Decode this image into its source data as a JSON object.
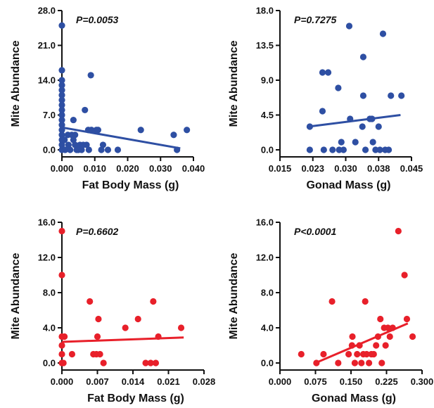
{
  "chart_data": [
    {
      "type": "scatter",
      "xlabel": "Fat Body Mass (g)",
      "ylabel": "Mite Abundance",
      "annotation": "P=0.0053",
      "xlim": [
        0,
        0.04
      ],
      "ylim": [
        0,
        28
      ],
      "xticks": [
        "0.000",
        "0.010",
        "0.020",
        "0.030",
        "0.040"
      ],
      "xtick_values": [
        0,
        0.01,
        0.02,
        0.03,
        0.04
      ],
      "yticks": [
        "0.0",
        "7.0",
        "14.0",
        "21.0",
        "28.0"
      ],
      "ytick_values": [
        0,
        7,
        14,
        21,
        28
      ],
      "color": "#2e4fa3",
      "fit_line": [
        [
          0,
          4.5
        ],
        [
          0.036,
          0.3
        ]
      ],
      "points": [
        [
          0,
          25
        ],
        [
          0,
          16
        ],
        [
          0,
          14
        ],
        [
          0,
          13
        ],
        [
          0,
          12
        ],
        [
          0,
          11
        ],
        [
          0,
          10
        ],
        [
          0,
          9
        ],
        [
          0,
          8
        ],
        [
          0,
          7
        ],
        [
          0,
          6
        ],
        [
          0,
          5
        ],
        [
          0,
          4
        ],
        [
          0,
          3
        ],
        [
          0,
          2
        ],
        [
          0,
          1
        ],
        [
          0,
          0
        ],
        [
          0.0008,
          2
        ],
        [
          0.001,
          0
        ],
        [
          0.0018,
          3
        ],
        [
          0.002,
          1
        ],
        [
          0.0025,
          0
        ],
        [
          0.003,
          3
        ],
        [
          0.0035,
          6
        ],
        [
          0.0035,
          2
        ],
        [
          0.004,
          3
        ],
        [
          0.004,
          1
        ],
        [
          0.0045,
          0
        ],
        [
          0.005,
          0
        ],
        [
          0.0055,
          1
        ],
        [
          0.006,
          0
        ],
        [
          0.0065,
          1
        ],
        [
          0.007,
          8
        ],
        [
          0.0075,
          1
        ],
        [
          0.008,
          4
        ],
        [
          0.0082,
          0
        ],
        [
          0.0088,
          15
        ],
        [
          0.009,
          4
        ],
        [
          0.0105,
          4
        ],
        [
          0.011,
          4
        ],
        [
          0.012,
          0
        ],
        [
          0.0125,
          1
        ],
        [
          0.014,
          0
        ],
        [
          0.017,
          0
        ],
        [
          0.024,
          4
        ],
        [
          0.034,
          3
        ],
        [
          0.035,
          0
        ],
        [
          0.038,
          4
        ]
      ]
    },
    {
      "type": "scatter",
      "xlabel": "Gonad Mass (g)",
      "ylabel": "Mite Abundance",
      "annotation": "P=0.7275",
      "xlim": [
        0.015,
        0.045
      ],
      "ylim": [
        0,
        18
      ],
      "xticks": [
        "0.015",
        "0.023",
        "0.030",
        "0.038",
        "0.045"
      ],
      "xtick_values": [
        0.015,
        0.0225,
        0.03,
        0.0375,
        0.045
      ],
      "yticks": [
        "0.0",
        "4.5",
        "9.0",
        "13.5",
        "18.0"
      ],
      "ytick_values": [
        0,
        4.5,
        9,
        13.5,
        18
      ],
      "color": "#2e4fa3",
      "fit_line": [
        [
          0.0215,
          3
        ],
        [
          0.0425,
          4.5
        ]
      ],
      "points": [
        [
          0.0218,
          3
        ],
        [
          0.0218,
          0
        ],
        [
          0.0247,
          5
        ],
        [
          0.0247,
          10
        ],
        [
          0.026,
          10
        ],
        [
          0.025,
          0
        ],
        [
          0.027,
          0
        ],
        [
          0.0283,
          8
        ],
        [
          0.0285,
          0
        ],
        [
          0.029,
          1
        ],
        [
          0.0295,
          0
        ],
        [
          0.0308,
          16
        ],
        [
          0.031,
          4
        ],
        [
          0.0322,
          1
        ],
        [
          0.034,
          12
        ],
        [
          0.034,
          7
        ],
        [
          0.0338,
          3
        ],
        [
          0.0345,
          0
        ],
        [
          0.0355,
          4
        ],
        [
          0.036,
          4
        ],
        [
          0.0362,
          1
        ],
        [
          0.0368,
          0
        ],
        [
          0.0375,
          3
        ],
        [
          0.0378,
          0
        ],
        [
          0.0385,
          15
        ],
        [
          0.039,
          0
        ],
        [
          0.0398,
          0
        ],
        [
          0.0403,
          7
        ],
        [
          0.0427,
          7
        ]
      ]
    },
    {
      "type": "scatter",
      "xlabel": "Fat Body Mass (g)",
      "ylabel": "Mite Abundance",
      "annotation": "P=0.6602",
      "xlim": [
        0,
        0.028
      ],
      "ylim": [
        0,
        16
      ],
      "xticks": [
        "0.000",
        "0.007",
        "0.014",
        "0.021",
        "0.028"
      ],
      "xtick_values": [
        0,
        0.007,
        0.014,
        0.021,
        0.028
      ],
      "yticks": [
        "0.0",
        "4.0",
        "8.0",
        "12.0",
        "16.0"
      ],
      "ytick_values": [
        0,
        4,
        8,
        12,
        16
      ],
      "color": "#e8202a",
      "fit_line": [
        [
          0,
          2.4
        ],
        [
          0.024,
          2.9
        ]
      ],
      "points": [
        [
          0,
          15
        ],
        [
          0,
          10
        ],
        [
          0,
          3
        ],
        [
          0,
          2
        ],
        [
          0,
          1
        ],
        [
          0,
          0
        ],
        [
          0.0003,
          0
        ],
        [
          0.0005,
          3
        ],
        [
          0.002,
          1
        ],
        [
          0.0055,
          7
        ],
        [
          0.0062,
          1
        ],
        [
          0.0068,
          1
        ],
        [
          0.007,
          3
        ],
        [
          0.0072,
          5
        ],
        [
          0.0075,
          1
        ],
        [
          0.0082,
          0
        ],
        [
          0.0125,
          4
        ],
        [
          0.015,
          5
        ],
        [
          0.0165,
          0
        ],
        [
          0.0175,
          0
        ],
        [
          0.018,
          7
        ],
        [
          0.0185,
          0
        ],
        [
          0.019,
          3
        ],
        [
          0.0235,
          4
        ]
      ]
    },
    {
      "type": "scatter",
      "xlabel": "Gonad Mass (g)",
      "ylabel": "Mite Abundance",
      "annotation": "P<0.0001",
      "xlim": [
        0,
        0.3
      ],
      "ylim": [
        0,
        16
      ],
      "xticks": [
        "0.000",
        "0.075",
        "0.150",
        "0.225",
        "0.300"
      ],
      "xtick_values": [
        0,
        0.075,
        0.15,
        0.225,
        0.3
      ],
      "yticks": [
        "0.0",
        "4.0",
        "8.0",
        "12.0",
        "16.0"
      ],
      "ytick_values": [
        0,
        4,
        8,
        12,
        16
      ],
      "color": "#e8202a",
      "fit_line": [
        [
          0.075,
          0
        ],
        [
          0.27,
          4.5
        ]
      ],
      "points": [
        [
          0.045,
          1
        ],
        [
          0.077,
          0
        ],
        [
          0.092,
          1
        ],
        [
          0.11,
          7
        ],
        [
          0.123,
          0
        ],
        [
          0.145,
          1
        ],
        [
          0.152,
          2
        ],
        [
          0.153,
          3
        ],
        [
          0.158,
          0
        ],
        [
          0.163,
          1
        ],
        [
          0.168,
          2
        ],
        [
          0.172,
          0
        ],
        [
          0.176,
          1
        ],
        [
          0.18,
          7
        ],
        [
          0.183,
          1
        ],
        [
          0.188,
          0
        ],
        [
          0.193,
          1
        ],
        [
          0.198,
          1
        ],
        [
          0.203,
          2
        ],
        [
          0.207,
          3
        ],
        [
          0.212,
          5
        ],
        [
          0.215,
          0
        ],
        [
          0.22,
          4
        ],
        [
          0.223,
          2
        ],
        [
          0.228,
          4
        ],
        [
          0.232,
          3
        ],
        [
          0.238,
          4
        ],
        [
          0.25,
          15
        ],
        [
          0.263,
          10
        ],
        [
          0.268,
          5
        ],
        [
          0.28,
          3
        ]
      ]
    }
  ]
}
